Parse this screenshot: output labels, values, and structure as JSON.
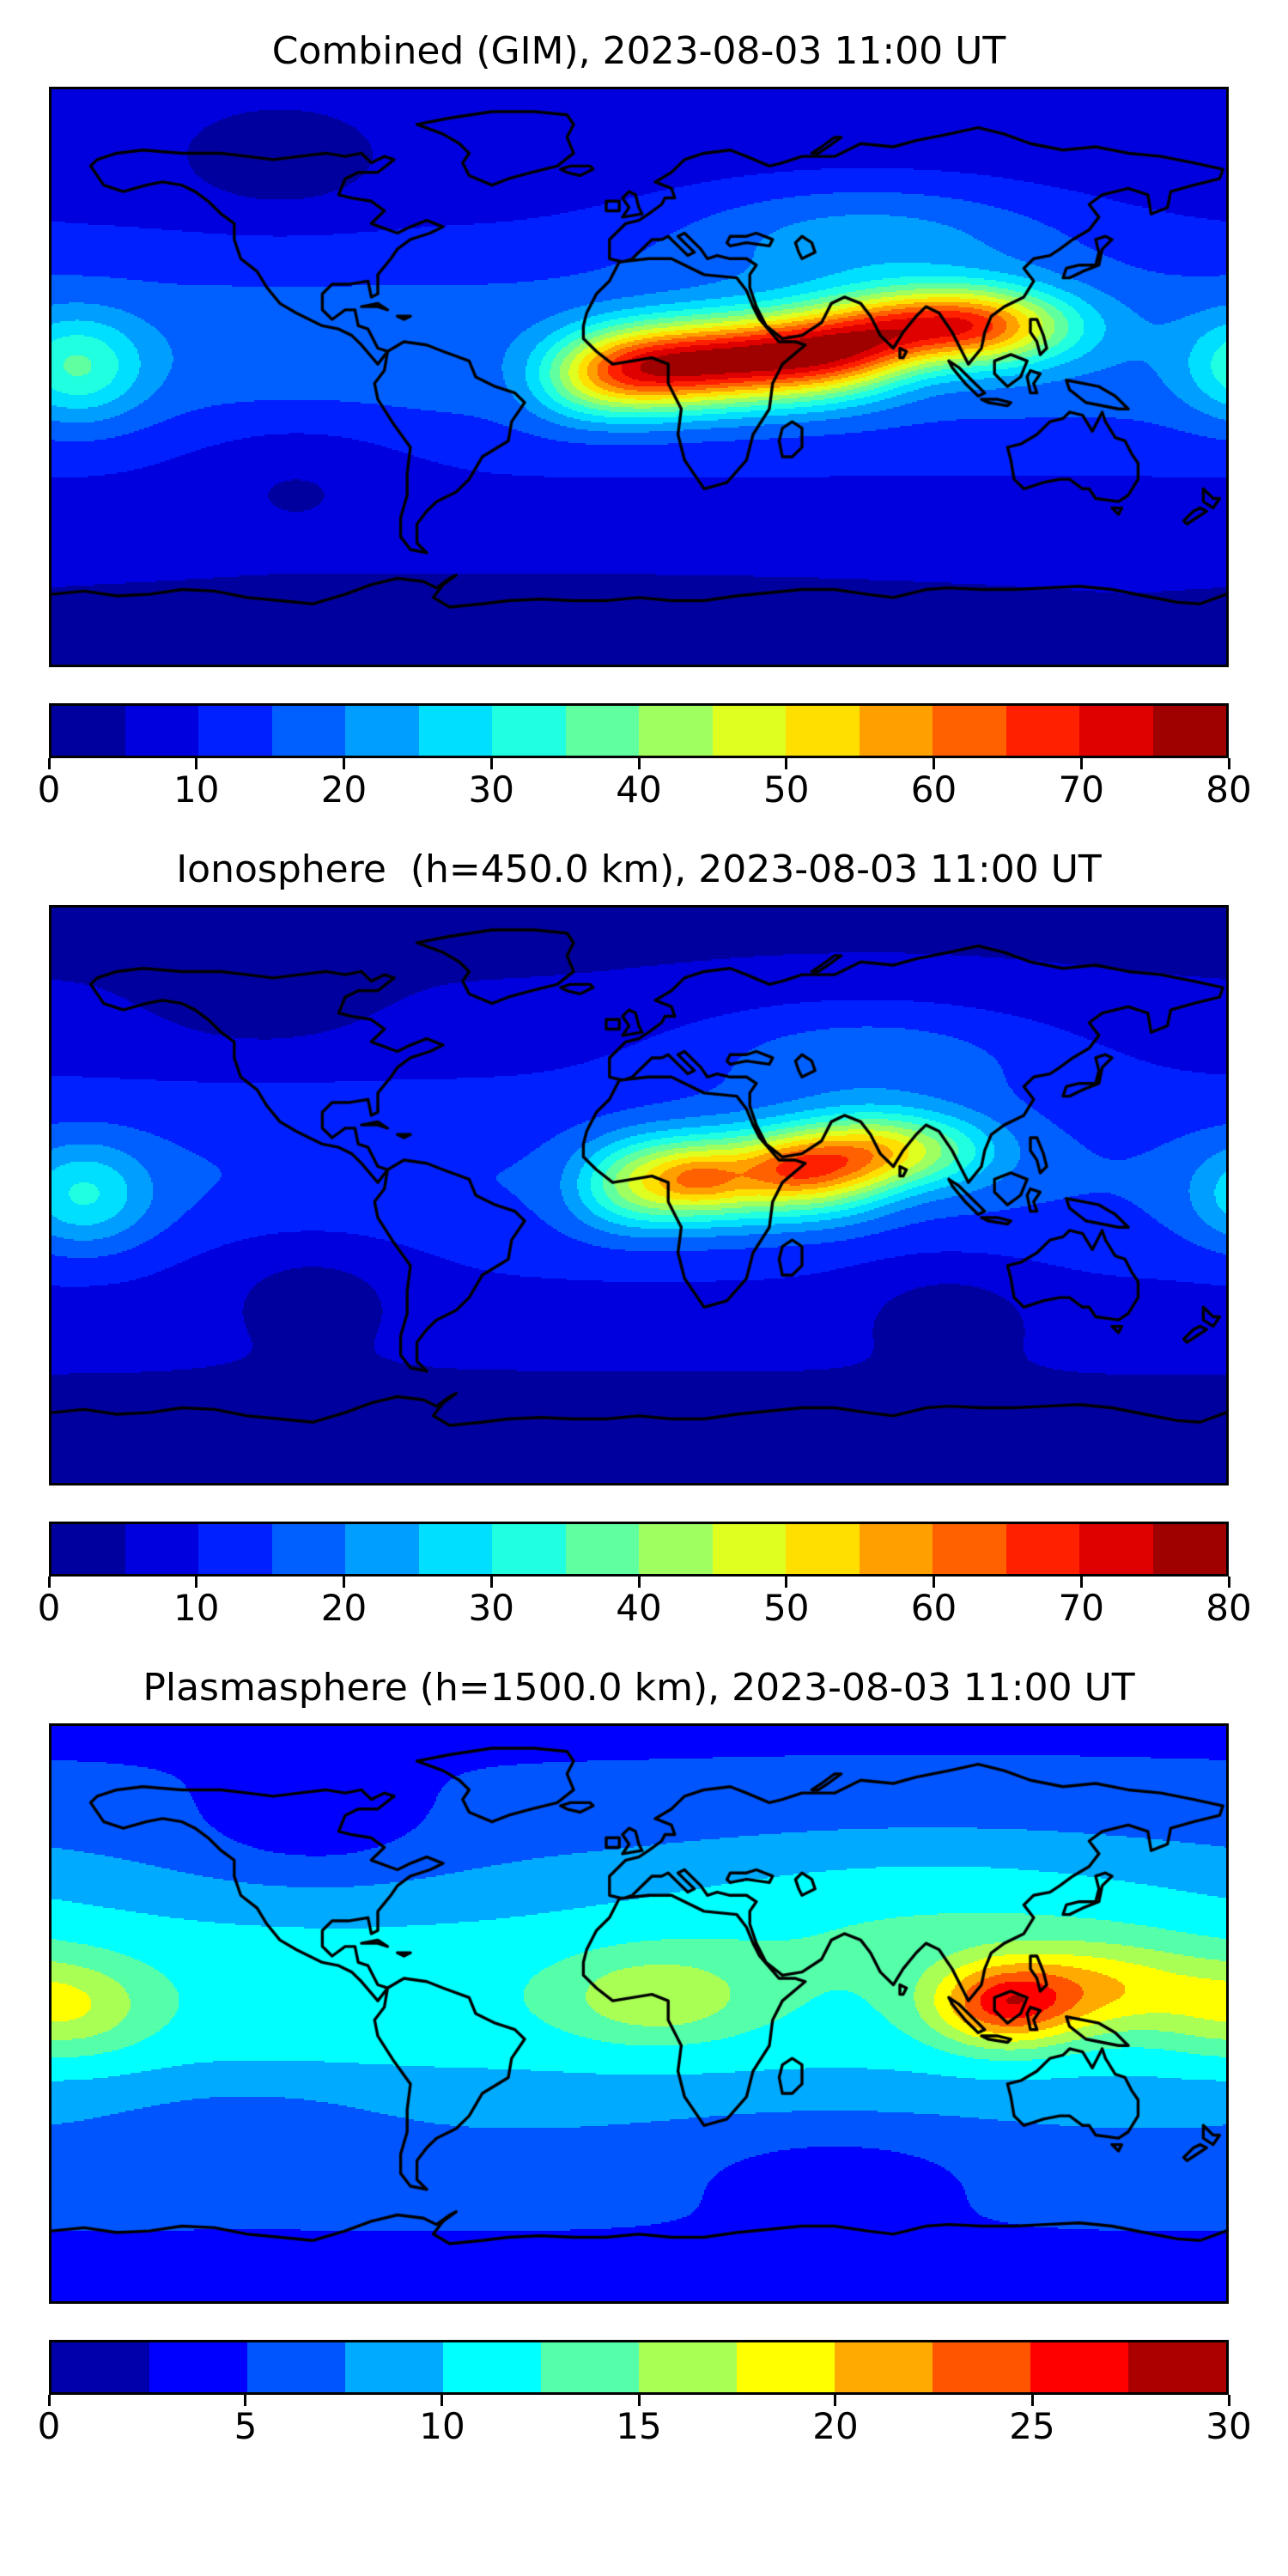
{
  "colors": {
    "background": "#ffffff",
    "map_border": "#000000",
    "coastline": "#000000",
    "text": "#000000",
    "colormap_first": "#00008f",
    "colormap_last": "#9f0000"
  },
  "chart_data": [
    {
      "type": "heatmap",
      "subtype": "filled-contour-world-map",
      "title": "Combined (GIM), 2023-08-03 11:00 UT",
      "projection": "equirectangular",
      "lon_range": [
        -180,
        180
      ],
      "lat_range": [
        -90,
        90
      ],
      "colormap": "jet",
      "grid": false,
      "levels": {
        "min": 0,
        "max": 80,
        "step": 5
      },
      "colorbar": {
        "position": "bottom",
        "ticks": [
          0,
          10,
          20,
          30,
          40,
          50,
          60,
          70,
          80
        ]
      },
      "field": {
        "description": "Total electron content; strong equatorial anomaly ridge over Africa through India/SE Asia peaking near 80, moderate Pacific equatorial patch, low values over Americas and poles",
        "base": {
          "offset": 5,
          "equator_amp": 13,
          "equator_lat": 8,
          "equator_sigma": 40
        },
        "blobs": [
          {
            "name": "african-indian-anomaly-ridge",
            "amp": 62,
            "lon": 28,
            "lat": 5,
            "lon_sigma": 52,
            "lat_sigma": 13.5,
            "lon_power": 4,
            "lat_tilt": 0.08
          },
          {
            "name": "southeast-asia-extension",
            "amp": 52,
            "lon": 98,
            "lat": 16,
            "lon_sigma": 32,
            "lat_sigma": 12
          },
          {
            "name": "pacific-equatorial-patch",
            "amp": 18,
            "lon": -172,
            "lat": 3,
            "lon_sigma": 20,
            "lat_sigma": 16
          },
          {
            "name": "eurasia-midlatitude-enhancement",
            "amp": 12,
            "lon": 70,
            "lat": 45,
            "lon_sigma": 60,
            "lat_sigma": 18
          },
          {
            "name": "south-pacific-low",
            "amp": -5,
            "lon": -105,
            "lat": -28,
            "lon_sigma": 35,
            "lat_sigma": 18
          },
          {
            "name": "north-canada-low",
            "amp": -4,
            "lon": -110,
            "lat": 62,
            "lon_sigma": 30,
            "lat_sigma": 14
          },
          {
            "name": "antarctic-low",
            "amp": -2.5,
            "lon": -30,
            "lat": -78,
            "lon_sigma": 150,
            "lat_sigma": 14
          }
        ],
        "max_approx": 80
      }
    },
    {
      "type": "heatmap",
      "subtype": "filled-contour-world-map",
      "title": "Ionosphere  (h=450.0 km), 2023-08-03 11:00 UT",
      "projection": "equirectangular",
      "lon_range": [
        -180,
        180
      ],
      "lat_range": [
        -90,
        90
      ],
      "colormap": "jet",
      "grid": false,
      "levels": {
        "min": 0,
        "max": 80,
        "step": 5
      },
      "colorbar": {
        "position": "bottom",
        "ticks": [
          0,
          10,
          20,
          30,
          40,
          50,
          60,
          70,
          80
        ]
      },
      "field": {
        "description": "Ionospheric TEC at 450 km; twin orange cores over central Africa and Horn of Africa near 60-65, yellow band to India, cyan Pacific patch, dark lows in south Pacific and south Indian Ocean",
        "base": {
          "offset": 4,
          "equator_amp": 11,
          "equator_lat": 5,
          "equator_sigma": 40
        },
        "blobs": [
          {
            "name": "african-ridge",
            "amp": 40,
            "lon": 30,
            "lat": 6,
            "lon_sigma": 45,
            "lat_sigma": 14,
            "lon_power": 4,
            "lat_tilt": 0.06
          },
          {
            "name": "central-africa-core",
            "amp": 8,
            "lon": 18,
            "lat": 5,
            "lon_sigma": 12,
            "lat_sigma": 8
          },
          {
            "name": "horn-of-africa-core",
            "amp": 8,
            "lon": 48,
            "lat": 9,
            "lon_sigma": 14,
            "lat_sigma": 9
          },
          {
            "name": "india-extension",
            "amp": 30,
            "lon": 80,
            "lat": 14,
            "lon_sigma": 28,
            "lat_sigma": 12
          },
          {
            "name": "pacific-equatorial-patch",
            "amp": 16,
            "lon": -170,
            "lat": 0,
            "lon_sigma": 20,
            "lat_sigma": 16
          },
          {
            "name": "eurasia-midlatitude-enhancement",
            "amp": 10,
            "lon": 70,
            "lat": 45,
            "lon_sigma": 60,
            "lat_sigma": 18
          },
          {
            "name": "south-pacific-low",
            "amp": -6,
            "lon": -100,
            "lat": -25,
            "lon_sigma": 35,
            "lat_sigma": 18
          },
          {
            "name": "south-indian-low",
            "amp": -5,
            "lon": 95,
            "lat": -32,
            "lon_sigma": 30,
            "lat_sigma": 15
          },
          {
            "name": "north-canada-low",
            "amp": -4,
            "lon": -115,
            "lat": 60,
            "lon_sigma": 30,
            "lat_sigma": 15
          },
          {
            "name": "antarctic-low",
            "amp": -2.5,
            "lon": -30,
            "lat": -78,
            "lon_sigma": 150,
            "lat_sigma": 14
          }
        ],
        "max_approx": 64
      }
    },
    {
      "type": "heatmap",
      "subtype": "filled-contour-world-map",
      "title": "Plasmasphere (h=1500.0 km), 2023-08-03 11:00 UT",
      "projection": "equirectangular",
      "lon_range": [
        -180,
        180
      ],
      "lat_range": [
        -90,
        90
      ],
      "colormap": "jet",
      "grid": false,
      "levels": {
        "min": 0,
        "max": 30,
        "step": 2.5
      },
      "colorbar": {
        "position": "bottom",
        "ticks": [
          0,
          5,
          10,
          15,
          20,
          25,
          30
        ]
      },
      "field": {
        "description": "Plasmaspheric TEC at 1500 km; orange peak near 26 over maritime continent (Borneo/Indonesia), yellow extension into west Pacific, cyan equatorial band, cyan patches at far-left Pacific and West Africa",
        "base": {
          "offset": 4.5,
          "equator_amp": 7,
          "equator_lat": 5,
          "equator_sigma": 45
        },
        "blobs": [
          {
            "name": "maritime-continent-peak",
            "amp": 13,
            "lon": 112,
            "lat": 3,
            "lon_sigma": 22,
            "lat_sigma": 13
          },
          {
            "name": "west-pacific-extension",
            "amp": 7,
            "lon": 142,
            "lat": 8,
            "lon_sigma": 30,
            "lat_sigma": 14
          },
          {
            "name": "pacific-equatorial-patch",
            "amp": 6,
            "lon": -175,
            "lat": 2,
            "lon_sigma": 25,
            "lat_sigma": 15
          },
          {
            "name": "west-africa-patch",
            "amp": 5.5,
            "lon": 5,
            "lat": 5,
            "lon_sigma": 30,
            "lat_sigma": 14
          },
          {
            "name": "east-asia-enhancement",
            "amp": 3,
            "lon": 90,
            "lat": 35,
            "lon_sigma": 90,
            "lat_sigma": 25
          },
          {
            "name": "north-america-low",
            "amp": -2.5,
            "lon": -100,
            "lat": 55,
            "lon_sigma": 40,
            "lat_sigma": 16
          },
          {
            "name": "south-pacific-low",
            "amp": -2,
            "lon": -120,
            "lat": -35,
            "lon_sigma": 40,
            "lat_sigma": 15
          },
          {
            "name": "south-indian-low",
            "amp": -2,
            "lon": 60,
            "lat": -45,
            "lon_sigma": 50,
            "lat_sigma": 15
          }
        ],
        "max_approx": 26
      }
    }
  ]
}
